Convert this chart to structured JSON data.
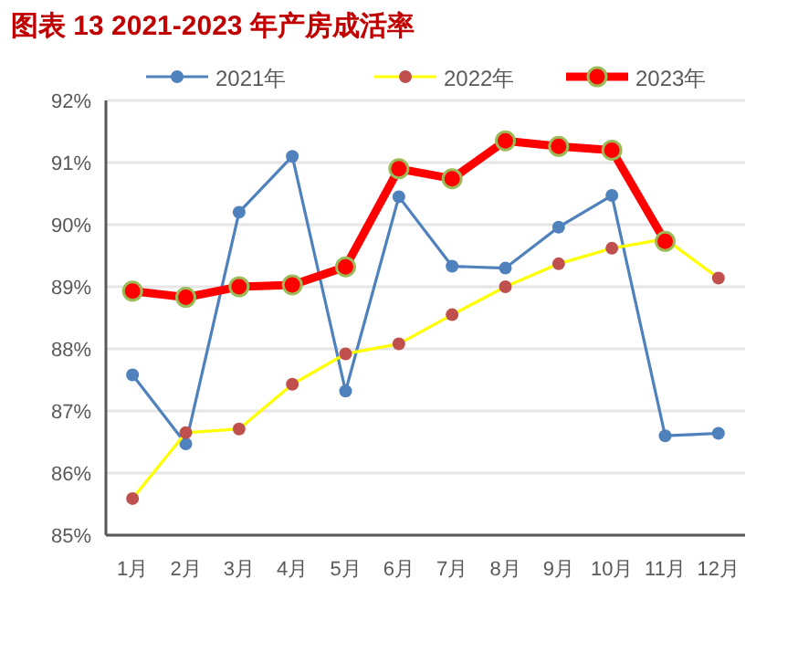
{
  "chart_data": {
    "type": "line",
    "title": "图表 13 2021-2023 年产房成活率",
    "categories": [
      "1月",
      "2月",
      "3月",
      "4月",
      "5月",
      "6月",
      "7月",
      "8月",
      "9月",
      "10月",
      "11月",
      "12月"
    ],
    "series": [
      {
        "name": "2021年",
        "color": "#4f81bd",
        "values": [
          87.58,
          86.47,
          90.2,
          91.1,
          87.32,
          90.45,
          89.33,
          89.3,
          89.96,
          90.47,
          86.6,
          86.64
        ]
      },
      {
        "name": "2022年",
        "color": "#ffff00",
        "values": [
          85.59,
          86.65,
          86.71,
          87.43,
          87.92,
          88.08,
          88.55,
          89.0,
          89.37,
          89.62,
          89.77,
          89.14
        ]
      },
      {
        "name": "2023年",
        "color": "#ff0000",
        "values": [
          88.93,
          88.83,
          89.0,
          89.03,
          89.32,
          90.9,
          90.74,
          91.35,
          91.26,
          91.2,
          89.73,
          null
        ]
      }
    ],
    "ylim": [
      85,
      92
    ],
    "yticks": [
      {
        "value": 85,
        "label": "85%"
      },
      {
        "value": 86,
        "label": "86%"
      },
      {
        "value": 87,
        "label": "87%"
      },
      {
        "value": 88,
        "label": "88%"
      },
      {
        "value": 89,
        "label": "89%"
      },
      {
        "value": 90,
        "label": "90%"
      },
      {
        "value": 91,
        "label": "91%"
      },
      {
        "value": 92,
        "label": "92%"
      }
    ],
    "grid": "y",
    "legend": "top",
    "marker": "circle",
    "line_style": "solid"
  }
}
